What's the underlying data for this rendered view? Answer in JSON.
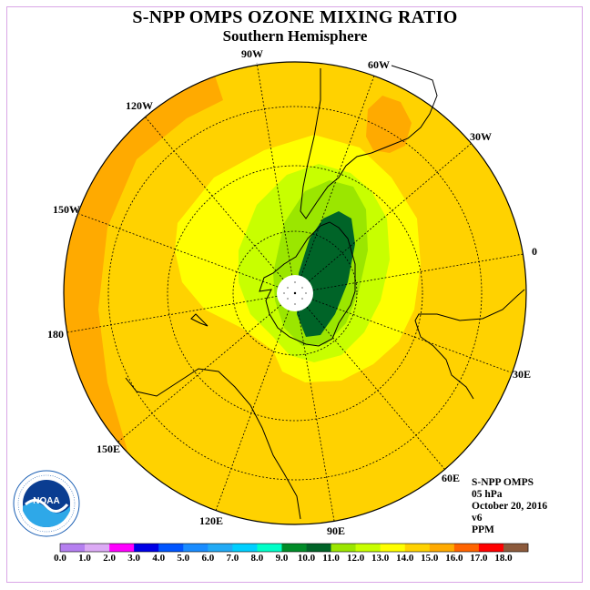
{
  "title": "S-NPP OMPS OZONE MIXING RATIO",
  "subtitle": "Southern Hemisphere",
  "longitude_labels": [
    "90W",
    "60W",
    "30W",
    "0",
    "30E",
    "60E",
    "90E",
    "120E",
    "150E",
    "180",
    "150W",
    "120W"
  ],
  "info": {
    "instrument": "S-NPP OMPS",
    "level": "05 hPa",
    "date": "October 20, 2016",
    "version": "v6",
    "units": "PPM"
  },
  "logo": {
    "text": "NOAA",
    "ring_text": "NATIONAL OCEANIC AND ATMOSPHERIC ADMINISTRATION · U.S. DEPARTMENT OF COMMERCE"
  },
  "colorbar": {
    "ticks": [
      "0.0",
      "1.0",
      "2.0",
      "3.0",
      "4.0",
      "5.0",
      "6.0",
      "7.0",
      "8.0",
      "9.0",
      "10.0",
      "11.0",
      "12.0",
      "13.0",
      "14.0",
      "15.0",
      "16.0",
      "17.0",
      "18.0"
    ],
    "colors": [
      "#b57ff0",
      "#dcaaf5",
      "#ff00ff",
      "#0000e6",
      "#0055ff",
      "#1a8cff",
      "#22aaf5",
      "#00cfff",
      "#00ffc8",
      "#008c28",
      "#006428",
      "#9be600",
      "#c8ff00",
      "#ffff00",
      "#ffd200",
      "#ffaa00",
      "#ff6400",
      "#ff0000",
      "#8c5a3c"
    ]
  },
  "map_colors": {
    "background_ppm_13_14": "#ffd200",
    "ppm_14_15": "#ffaa00",
    "ppm_12_13": "#ffff00",
    "ppm_11_12": "#c8ff00",
    "ppm_10_11": "#9be600",
    "ppm_9_10": "#006428"
  }
}
